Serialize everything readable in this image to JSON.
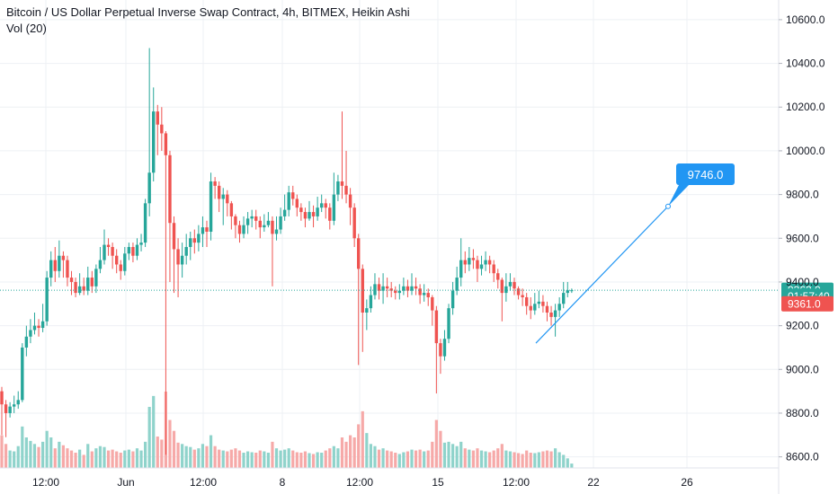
{
  "header": {
    "title": "Bitcoin / US Dollar Perpetual Inverse Swap Contract, 4h, BITMEX, Heikin Ashi",
    "volume_label": "Vol (20)"
  },
  "colors": {
    "up": "#26a69a",
    "down": "#ef5350",
    "up_volume": "#8fd3cb",
    "down_volume": "#f6a9a8",
    "grid": "#eef0f4",
    "axis_border": "#e0e3eb",
    "price_line": "#26a69a",
    "annotation": "#2196f3"
  },
  "annotation": {
    "label": "9746.0",
    "start_price": 9120,
    "end_price": 9746
  },
  "price_badges": [
    {
      "label": "9362.0",
      "price": 9362,
      "color": "#26a69a"
    },
    {
      "label": "01:57:40",
      "price": 9335,
      "color": "#26a69a"
    },
    {
      "label": "9361.0",
      "price": 9300,
      "color": "#ef5350"
    }
  ],
  "chart_data": {
    "type": "candlestick",
    "chart_style": "Heikin Ashi",
    "interval": "4h",
    "exchange": "BITMEX",
    "y_axis": {
      "position": "right",
      "ticks": [
        "10600.0",
        "10400.0",
        "10200.0",
        "10000.0",
        "9800.0",
        "9600.0",
        "9400.0",
        "9200.0",
        "9000.0",
        "8800.0",
        "8600.0"
      ],
      "ylim": [
        8430,
        10690
      ]
    },
    "x_axis": {
      "ticks": [
        "12:00",
        "Jun",
        "12:00",
        "8",
        "12:00",
        "15",
        "12:00",
        "22",
        "26"
      ]
    },
    "last_price": 9362.0,
    "candles": [
      [
        8900,
        8840,
        8920,
        8700,
        75
      ],
      [
        8840,
        8800,
        8860,
        8690,
        55
      ],
      [
        8800,
        8830,
        8850,
        8780,
        40
      ],
      [
        8830,
        8840,
        8880,
        8800,
        38
      ],
      [
        8840,
        8860,
        8900,
        8820,
        50
      ],
      [
        8860,
        9100,
        9120,
        8850,
        95
      ],
      [
        9100,
        9150,
        9200,
        9060,
        70
      ],
      [
        9150,
        9180,
        9230,
        9120,
        62
      ],
      [
        9180,
        9200,
        9260,
        9160,
        55
      ],
      [
        9200,
        9190,
        9230,
        9150,
        48
      ],
      [
        9190,
        9220,
        9300,
        9170,
        60
      ],
      [
        9220,
        9420,
        9450,
        9200,
        85
      ],
      [
        9420,
        9500,
        9540,
        9380,
        70
      ],
      [
        9500,
        9450,
        9560,
        9400,
        45
      ],
      [
        9450,
        9520,
        9590,
        9420,
        60
      ],
      [
        9520,
        9500,
        9540,
        9420,
        52
      ],
      [
        9500,
        9420,
        9520,
        9380,
        45
      ],
      [
        9420,
        9400,
        9450,
        9340,
        40
      ],
      [
        9400,
        9350,
        9420,
        9330,
        35
      ],
      [
        9350,
        9380,
        9440,
        9340,
        42
      ],
      [
        9380,
        9360,
        9420,
        9340,
        30
      ],
      [
        9360,
        9420,
        9470,
        9340,
        55
      ],
      [
        9420,
        9380,
        9450,
        9350,
        38
      ],
      [
        9380,
        9460,
        9480,
        9350,
        45
      ],
      [
        9460,
        9500,
        9560,
        9440,
        50
      ],
      [
        9500,
        9570,
        9640,
        9480,
        48
      ],
      [
        9570,
        9560,
        9600,
        9520,
        40
      ],
      [
        9560,
        9520,
        9580,
        9460,
        42
      ],
      [
        9520,
        9480,
        9550,
        9440,
        38
      ],
      [
        9480,
        9450,
        9500,
        9410,
        35
      ],
      [
        9450,
        9530,
        9560,
        9430,
        40
      ],
      [
        9530,
        9560,
        9580,
        9500,
        42
      ],
      [
        9560,
        9520,
        9580,
        9490,
        38
      ],
      [
        9520,
        9570,
        9600,
        9500,
        45
      ],
      [
        9570,
        9580,
        9620,
        9540,
        40
      ],
      [
        9580,
        9760,
        9780,
        9560,
        60
      ],
      [
        9760,
        9900,
        10470,
        9700,
        140
      ],
      [
        9900,
        10180,
        10290,
        9860,
        165
      ],
      [
        10180,
        10120,
        10210,
        9980,
        72
      ],
      [
        10120,
        10080,
        10200,
        10000,
        65
      ],
      [
        10080,
        9980,
        10090,
        8610,
        175
      ],
      [
        9980,
        9670,
        10000,
        9400,
        110
      ],
      [
        9670,
        9550,
        9700,
        9350,
        85
      ],
      [
        9550,
        9480,
        9600,
        9330,
        58
      ],
      [
        9480,
        9520,
        9580,
        9420,
        55
      ],
      [
        9520,
        9560,
        9620,
        9480,
        50
      ],
      [
        9560,
        9600,
        9630,
        9500,
        48
      ],
      [
        9600,
        9580,
        9640,
        9530,
        42
      ],
      [
        9580,
        9620,
        9660,
        9540,
        45
      ],
      [
        9620,
        9650,
        9700,
        9560,
        55
      ],
      [
        9650,
        9630,
        9680,
        9560,
        50
      ],
      [
        9630,
        9860,
        9900,
        9590,
        75
      ],
      [
        9860,
        9840,
        9880,
        9780,
        50
      ],
      [
        9840,
        9780,
        9860,
        9720,
        42
      ],
      [
        9780,
        9800,
        9830,
        9660,
        40
      ],
      [
        9800,
        9760,
        9820,
        9700,
        38
      ],
      [
        9760,
        9700,
        9770,
        9640,
        42
      ],
      [
        9700,
        9660,
        9710,
        9600,
        45
      ],
      [
        9660,
        9620,
        9680,
        9580,
        40
      ],
      [
        9620,
        9660,
        9700,
        9600,
        35
      ],
      [
        9660,
        9690,
        9720,
        9620,
        38
      ],
      [
        9690,
        9700,
        9730,
        9650,
        36
      ],
      [
        9700,
        9680,
        9730,
        9640,
        35
      ],
      [
        9680,
        9650,
        9700,
        9600,
        40
      ],
      [
        9650,
        9660,
        9710,
        9630,
        38
      ],
      [
        9660,
        9680,
        9720,
        9650,
        35
      ],
      [
        9680,
        9620,
        9700,
        9380,
        60
      ],
      [
        9620,
        9640,
        9700,
        9590,
        45
      ],
      [
        9640,
        9700,
        9740,
        9620,
        40
      ],
      [
        9700,
        9730,
        9800,
        9680,
        42
      ],
      [
        9730,
        9810,
        9840,
        9700,
        45
      ],
      [
        9810,
        9780,
        9840,
        9750,
        40
      ],
      [
        9780,
        9740,
        9800,
        9700,
        36
      ],
      [
        9740,
        9720,
        9760,
        9680,
        35
      ],
      [
        9720,
        9690,
        9740,
        9650,
        38
      ],
      [
        9690,
        9720,
        9770,
        9680,
        34
      ],
      [
        9720,
        9700,
        9750,
        9650,
        32
      ],
      [
        9700,
        9740,
        9790,
        9680,
        36
      ],
      [
        9740,
        9760,
        9800,
        9720,
        35
      ],
      [
        9760,
        9740,
        9780,
        9690,
        40
      ],
      [
        9740,
        9680,
        9760,
        9640,
        45
      ],
      [
        9680,
        9800,
        9900,
        9660,
        50
      ],
      [
        9800,
        9860,
        9890,
        9770,
        45
      ],
      [
        9860,
        9840,
        10180,
        9780,
        70
      ],
      [
        9840,
        9800,
        10000,
        9760,
        60
      ],
      [
        9800,
        9740,
        9830,
        9660,
        75
      ],
      [
        9740,
        9600,
        9760,
        9560,
        70
      ],
      [
        9600,
        9460,
        9620,
        9020,
        100
      ],
      [
        9460,
        9260,
        9480,
        9080,
        130
      ],
      [
        9260,
        9280,
        9320,
        9180,
        80
      ],
      [
        9280,
        9340,
        9380,
        9260,
        55
      ],
      [
        9340,
        9390,
        9440,
        9320,
        50
      ],
      [
        9390,
        9360,
        9420,
        9320,
        42
      ],
      [
        9360,
        9380,
        9440,
        9300,
        45
      ],
      [
        9380,
        9370,
        9420,
        9330,
        40
      ],
      [
        9370,
        9360,
        9400,
        9330,
        38
      ],
      [
        9360,
        9350,
        9380,
        9320,
        35
      ],
      [
        9350,
        9360,
        9390,
        9320,
        32
      ],
      [
        9360,
        9380,
        9420,
        9340,
        36
      ],
      [
        9380,
        9360,
        9410,
        9330,
        38
      ],
      [
        9360,
        9380,
        9440,
        9340,
        42
      ],
      [
        9380,
        9370,
        9420,
        9340,
        40
      ],
      [
        9370,
        9340,
        9390,
        9300,
        42
      ],
      [
        9340,
        9350,
        9390,
        9310,
        38
      ],
      [
        9350,
        9330,
        9370,
        9290,
        40
      ],
      [
        9330,
        9270,
        9340,
        9200,
        60
      ],
      [
        9270,
        9120,
        9290,
        8890,
        110
      ],
      [
        9120,
        9060,
        9140,
        8980,
        85
      ],
      [
        9060,
        9140,
        9180,
        9040,
        58
      ],
      [
        9140,
        9280,
        9300,
        9120,
        60
      ],
      [
        9280,
        9360,
        9400,
        9250,
        55
      ],
      [
        9360,
        9420,
        9470,
        9340,
        50
      ],
      [
        9420,
        9500,
        9600,
        9380,
        60
      ],
      [
        9500,
        9480,
        9540,
        9440,
        45
      ],
      [
        9480,
        9510,
        9560,
        9450,
        42
      ],
      [
        9510,
        9500,
        9550,
        9460,
        40
      ],
      [
        9500,
        9460,
        9520,
        9400,
        45
      ],
      [
        9460,
        9480,
        9520,
        9430,
        40
      ],
      [
        9480,
        9500,
        9540,
        9450,
        38
      ],
      [
        9500,
        9480,
        9520,
        9440,
        36
      ],
      [
        9480,
        9440,
        9500,
        9400,
        40
      ],
      [
        9440,
        9410,
        9460,
        9370,
        45
      ],
      [
        9410,
        9350,
        9420,
        9220,
        55
      ],
      [
        9350,
        9380,
        9440,
        9310,
        40
      ],
      [
        9380,
        9400,
        9440,
        9360,
        38
      ],
      [
        9400,
        9370,
        9420,
        9340,
        36
      ],
      [
        9370,
        9340,
        9380,
        9320,
        34
      ],
      [
        9340,
        9330,
        9370,
        9290,
        32
      ],
      [
        9330,
        9290,
        9350,
        9250,
        40
      ],
      [
        9290,
        9270,
        9330,
        9230,
        35
      ],
      [
        9270,
        9300,
        9350,
        9250,
        34
      ],
      [
        9300,
        9310,
        9360,
        9280,
        36
      ],
      [
        9310,
        9290,
        9340,
        9260,
        38
      ],
      [
        9290,
        9260,
        9310,
        9220,
        40
      ],
      [
        9260,
        9240,
        9290,
        9200,
        38
      ],
      [
        9240,
        9270,
        9300,
        9150,
        45
      ],
      [
        9270,
        9300,
        9330,
        9240,
        36
      ],
      [
        9300,
        9350,
        9400,
        9280,
        30
      ],
      [
        9350,
        9362,
        9400,
        9330,
        22
      ],
      [
        9362,
        9362,
        9370,
        9350,
        10
      ]
    ]
  }
}
